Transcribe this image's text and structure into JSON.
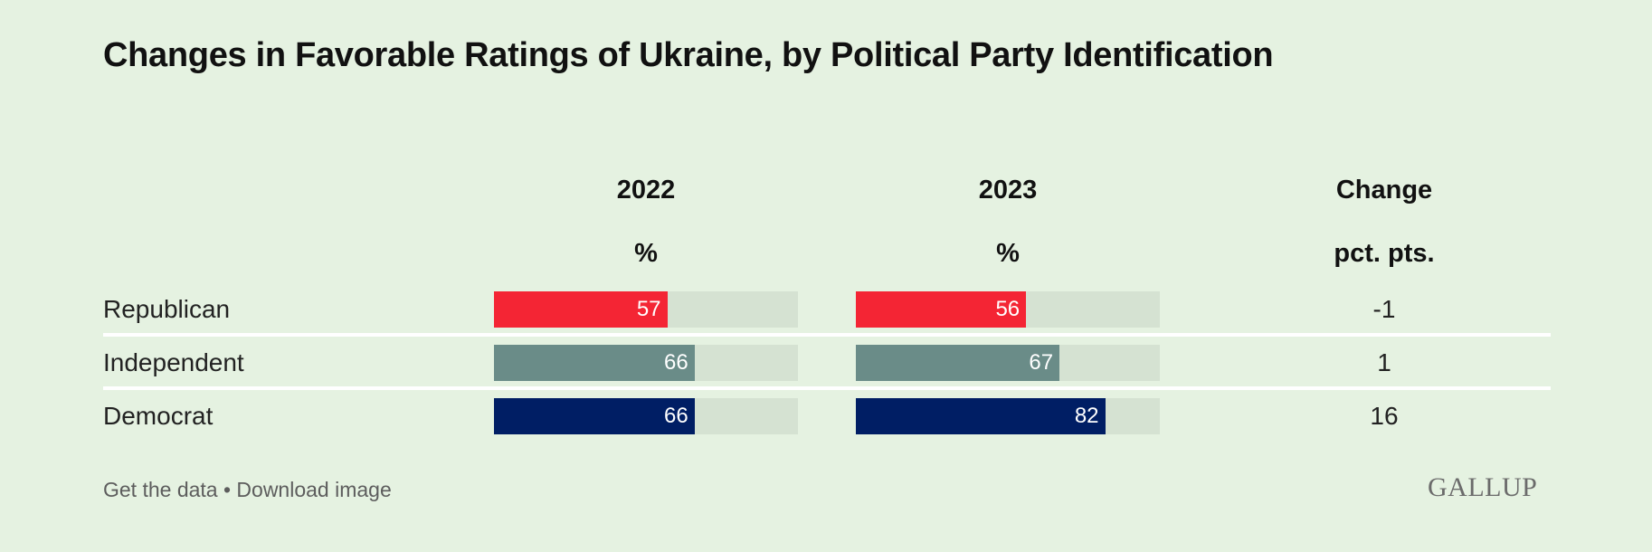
{
  "colors": {
    "background": "#e5f2e1",
    "track": "#d5e2d2",
    "republican": "#f42534",
    "independent": "#6a8c88",
    "democrat": "#001e64",
    "divider": "#ffffff"
  },
  "chart_data": {
    "type": "bar",
    "title": "Changes in Favorable Ratings of Ukraine, by Political Party Identification",
    "categories": [
      "Republican",
      "Independent",
      "Democrat"
    ],
    "columns": {
      "col_2022": {
        "label": "2022",
        "unit": "%"
      },
      "col_2023": {
        "label": "2023",
        "unit": "%"
      },
      "change": {
        "label": "Change",
        "unit": "pct. pts."
      }
    },
    "series": [
      {
        "name": "2022",
        "values": [
          57,
          66,
          66
        ]
      },
      {
        "name": "2023",
        "values": [
          56,
          67,
          82
        ]
      }
    ],
    "change_values": [
      "-1",
      "1",
      "16"
    ],
    "xlim": [
      0,
      100
    ]
  },
  "rows": [
    {
      "label": "Republican",
      "v2022": "57",
      "v2023": "56",
      "change": "-1",
      "color": "#f42534"
    },
    {
      "label": "Independent",
      "v2022": "66",
      "v2023": "67",
      "change": "1",
      "color": "#6a8c88"
    },
    {
      "label": "Democrat",
      "v2022": "66",
      "v2023": "82",
      "change": "16",
      "color": "#001e64"
    }
  ],
  "footer": {
    "links": "Get the data • Download image",
    "logo": "GALLUP"
  }
}
